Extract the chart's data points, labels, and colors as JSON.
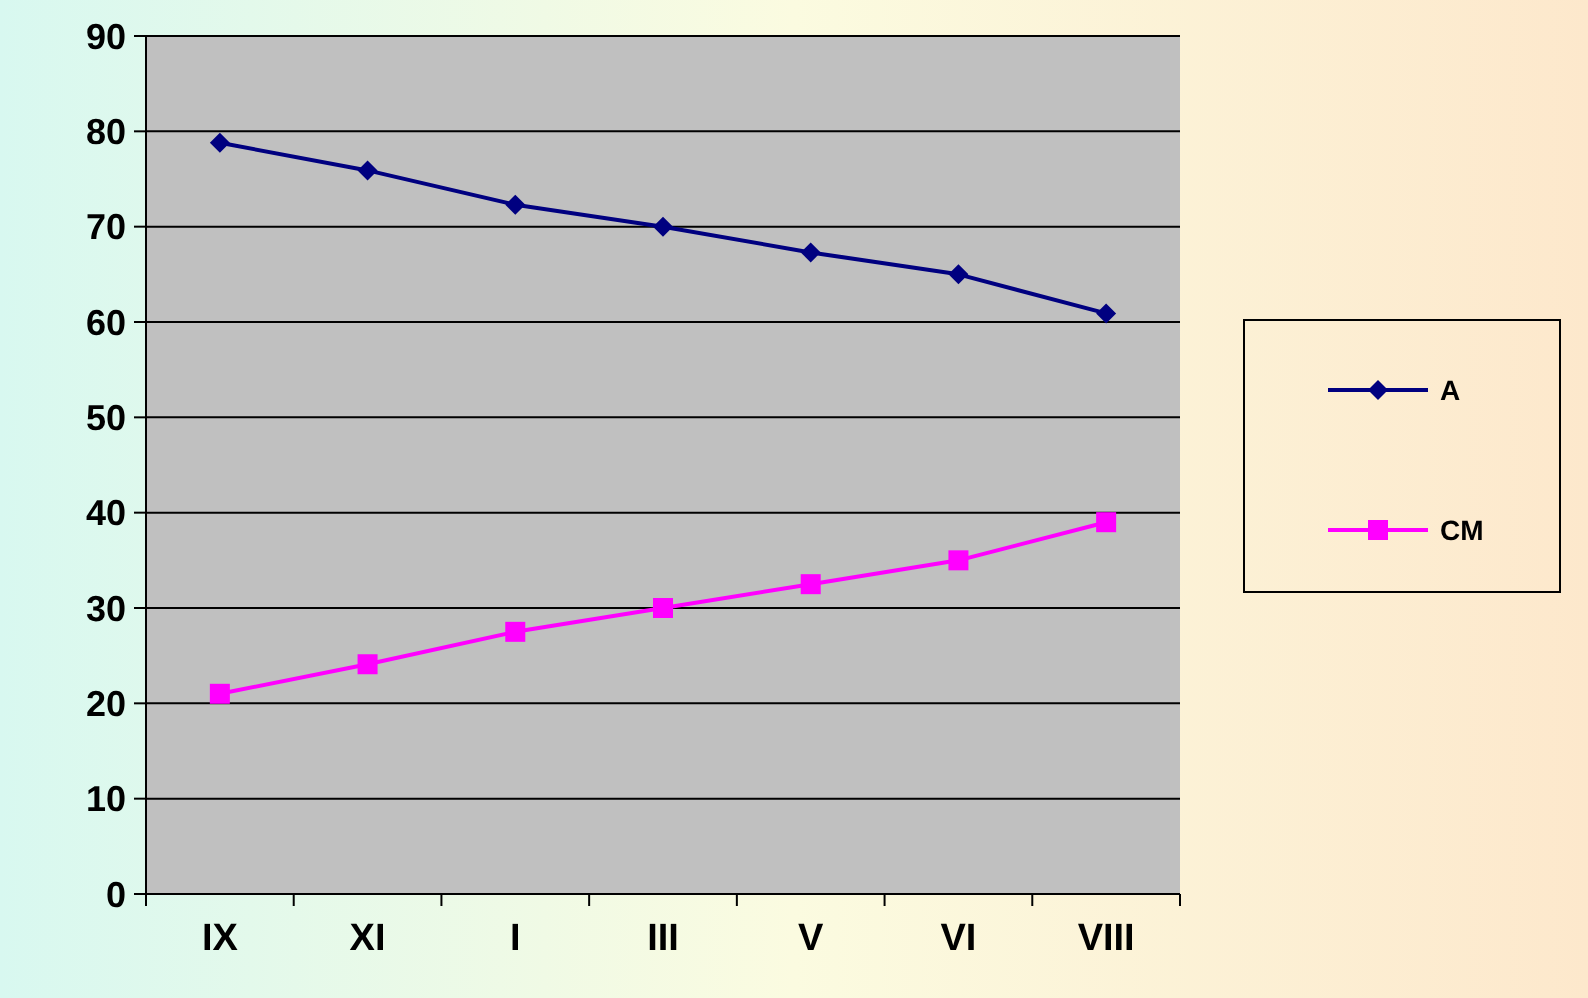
{
  "chart_data": {
    "type": "line",
    "categories": [
      "IX",
      "XI",
      "I",
      "III",
      "V",
      "VI",
      "VIII"
    ],
    "series": [
      {
        "name": "A",
        "color": "#000080",
        "marker": "diamond",
        "values": [
          78.8,
          75.9,
          72.3,
          70,
          67.3,
          65,
          60.9
        ]
      },
      {
        "name": "CM",
        "color": "#ff00ff",
        "marker": "square",
        "values": [
          21,
          24.1,
          27.5,
          30,
          32.5,
          35,
          39
        ]
      }
    ],
    "ylim": [
      0,
      90
    ],
    "yticks": [
      0,
      10,
      20,
      30,
      40,
      50,
      60,
      70,
      80,
      90
    ],
    "grid": "y",
    "legend": "right"
  }
}
